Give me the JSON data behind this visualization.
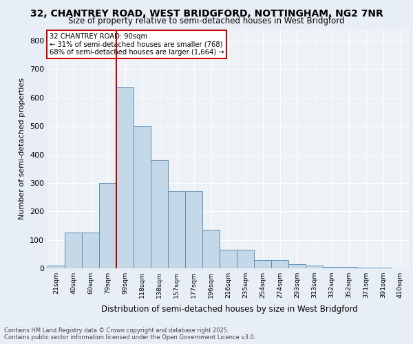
{
  "title_line1": "32, CHANTREY ROAD, WEST BRIDGFORD, NOTTINGHAM, NG2 7NR",
  "title_line2": "Size of property relative to semi-detached houses in West Bridgford",
  "xlabel": "Distribution of semi-detached houses by size in West Bridgford",
  "ylabel": "Number of semi-detached properties",
  "categories": [
    "21sqm",
    "40sqm",
    "60sqm",
    "79sqm",
    "99sqm",
    "118sqm",
    "138sqm",
    "157sqm",
    "177sqm",
    "196sqm",
    "216sqm",
    "235sqm",
    "254sqm",
    "274sqm",
    "293sqm",
    "313sqm",
    "332sqm",
    "352sqm",
    "371sqm",
    "391sqm",
    "410sqm"
  ],
  "values": [
    10,
    125,
    125,
    300,
    635,
    500,
    380,
    270,
    270,
    135,
    65,
    65,
    30,
    30,
    15,
    10,
    5,
    5,
    2,
    2,
    1
  ],
  "bar_color": "#c5d8e8",
  "bar_edge_color": "#5b8db8",
  "vline_color": "#cc0000",
  "vline_x_idx": 3.5,
  "annotation_title": "32 CHANTREY ROAD: 90sqm",
  "annotation_line1": "← 31% of semi-detached houses are smaller (768)",
  "annotation_line2": "68% of semi-detached houses are larger (1,664) →",
  "annotation_box_color": "#cc0000",
  "ylim": [
    0,
    840
  ],
  "yticks": [
    0,
    100,
    200,
    300,
    400,
    500,
    600,
    700,
    800
  ],
  "footer_line1": "Contains HM Land Registry data © Crown copyright and database right 2025.",
  "footer_line2": "Contains public sector information licensed under the Open Government Licence v3.0.",
  "bg_color": "#e8eef5",
  "plot_bg_color": "#edf2f7",
  "grid_color": "#ffffff"
}
